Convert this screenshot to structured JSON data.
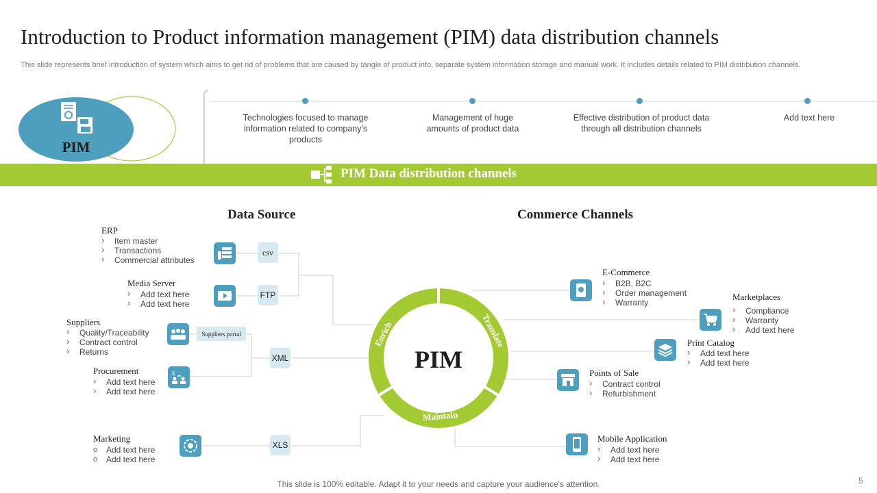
{
  "title": "Introduction to Product information management (PIM) data distribution channels",
  "subtitle": "This slide represents brief introduction of system which aims to get rid of problems that are caused by tangle of product info, separate system information storage and manual work. It includes details related to PIM distribution channels.",
  "pim_badge": "PIM",
  "features": [
    "Technologies focused to manage information related to company's products",
    "Management of huge amounts of product data",
    "Effective distribution of product data through all distribution channels",
    "Add text here"
  ],
  "band_title": "PIM Data distribution channels",
  "data_source_title": "Data Source",
  "commerce_title": "Commerce Channels",
  "center_label": "PIM",
  "ring_labels": {
    "enrich": "Enrich",
    "translate": "Translate",
    "maintain": "Maintain"
  },
  "sources": {
    "erp": {
      "title": "ERP",
      "items": [
        "Item master",
        "Transactions",
        "Commercial attributes"
      ]
    },
    "media": {
      "title": "Media Server",
      "items": [
        "Add text here",
        "Add text here"
      ]
    },
    "suppliers": {
      "title": "Suppliers",
      "items": [
        "Quality/Traceability",
        "Contract control",
        "Returns"
      ]
    },
    "procurement": {
      "title": "Procurement",
      "items": [
        "Add text here",
        "Add text here"
      ]
    },
    "marketing": {
      "title": "Marketing",
      "items": [
        "Add text here",
        "Add text here"
      ]
    }
  },
  "formats": {
    "csv": "csv",
    "ftp": "FTP",
    "xml": "XML",
    "xls": "XLS",
    "portal": "Suppliers portal"
  },
  "channels": {
    "ecommerce": {
      "title": "E-Commerce",
      "items": [
        "B2B, B2C",
        "Order management",
        "Warranty"
      ]
    },
    "marketplaces": {
      "title": "Marketplaces",
      "items": [
        "Compliance",
        "Warranty",
        "Add text here"
      ]
    },
    "print": {
      "title": "Print Catalog",
      "items": [
        "Add text here",
        "Add text here"
      ]
    },
    "pos": {
      "title": "Points of Sale",
      "items": [
        "Contract control",
        "Refurbishment"
      ]
    },
    "mobile": {
      "title": "Mobile Application",
      "items": [
        "Add text here",
        "Add text here"
      ]
    }
  },
  "footer": "This slide is 100% editable. Adapt it to your needs and capture your audience's attention.",
  "page_number": "5",
  "colors": {
    "accent_green": "#a4ca33",
    "accent_blue": "#4e9fbd",
    "light_blue": "#d7eaf2"
  }
}
